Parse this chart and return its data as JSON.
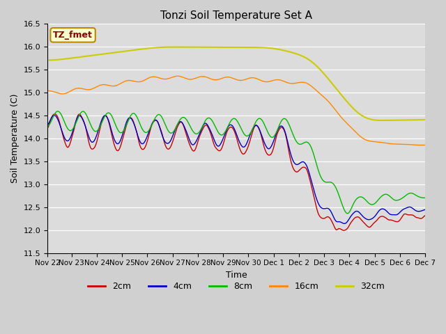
{
  "title": "Tonzi Soil Temperature Set A",
  "xlabel": "Time",
  "ylabel": "Soil Temperature (C)",
  "ylim": [
    11.5,
    16.5
  ],
  "legend_label": "TZ_fmet",
  "tick_labels": [
    "Nov 22",
    "Nov 23",
    "Nov 24",
    "Nov 25",
    "Nov 26",
    "Nov 27",
    "Nov 28",
    "Nov 29",
    "Nov 30",
    "Dec 1",
    "Dec 2",
    "Dec 3",
    "Dec 4",
    "Dec 5",
    "Dec 6",
    "Dec 7"
  ],
  "series_colors": {
    "2cm": "#cc0000",
    "4cm": "#0000cc",
    "8cm": "#00bb00",
    "16cm": "#ff8800",
    "32cm": "#cccc00"
  }
}
